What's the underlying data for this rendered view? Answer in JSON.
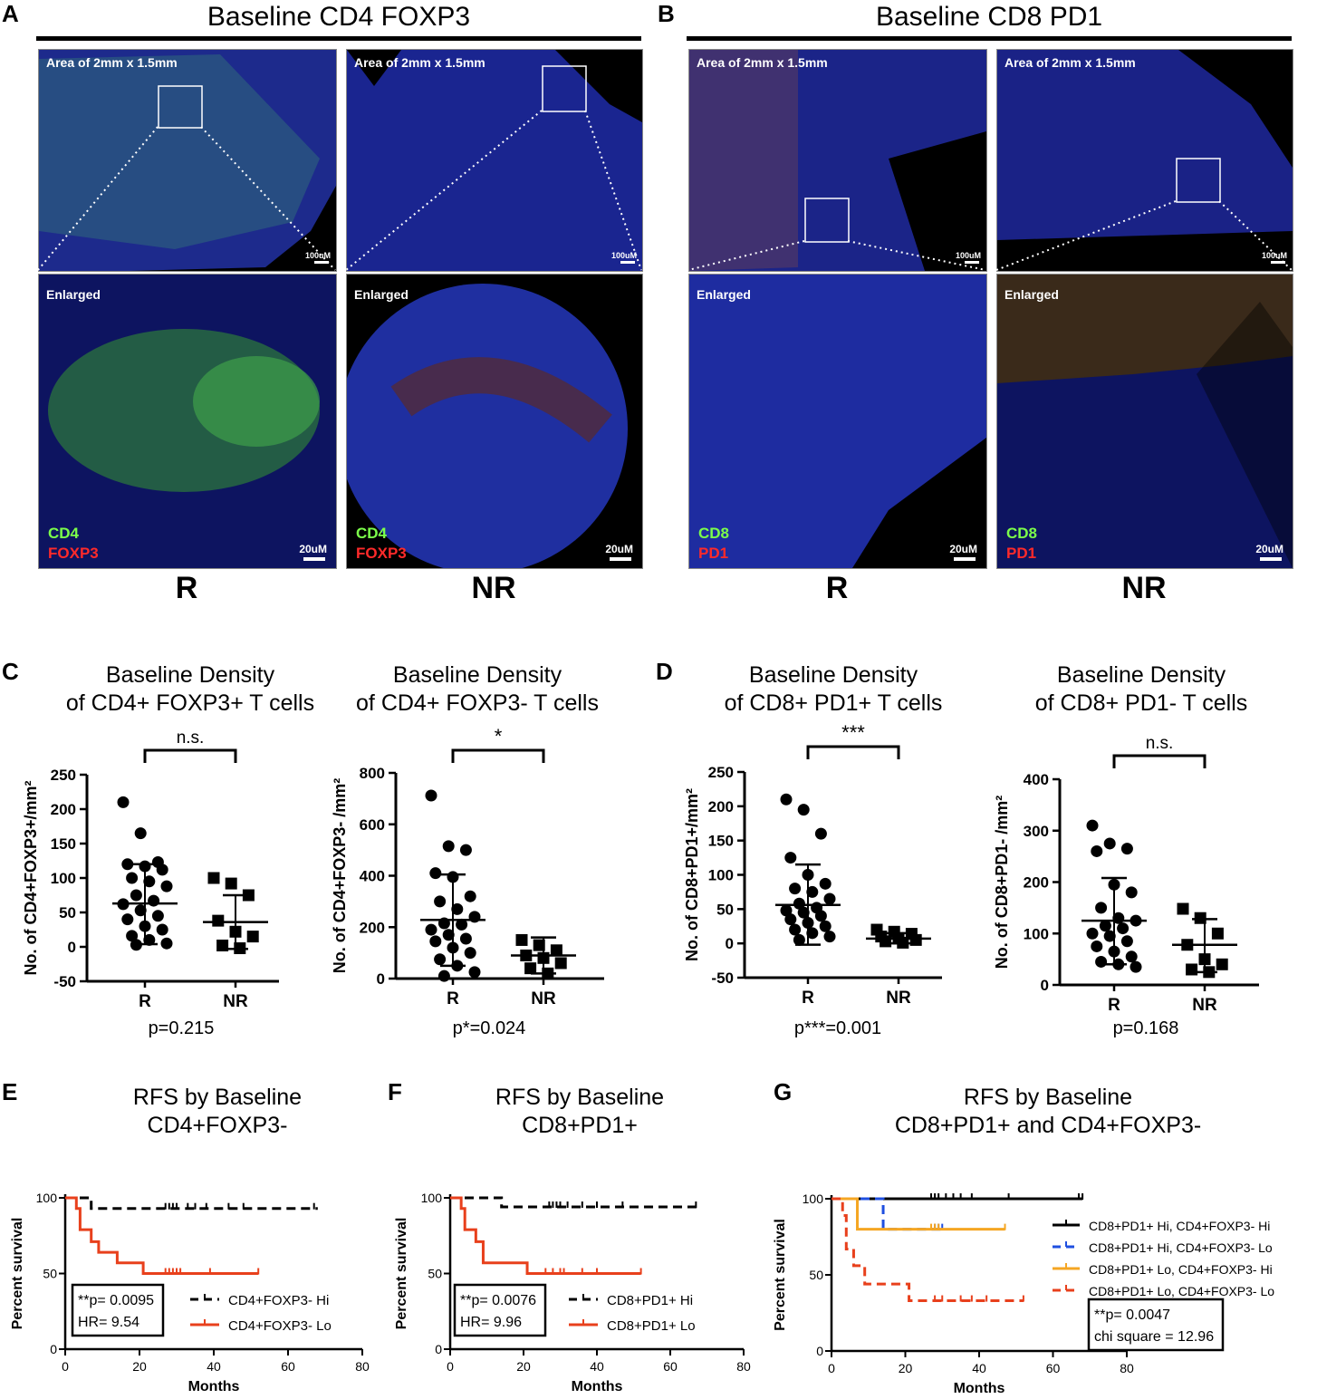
{
  "panels": {
    "A": {
      "letter": "A",
      "title": "Baseline CD4 FOXP3",
      "area_label": "Area of 2mm x 1.5mm",
      "enlarged_label": "Enlarged",
      "marker1": "CD4",
      "marker2": "FOXP3",
      "small_scale": "100uM",
      "large_scale": "20uM",
      "group_left": "R",
      "group_right": "NR"
    },
    "B": {
      "letter": "B",
      "title": "Baseline CD8 PD1",
      "area_label": "Area of 2mm x 1.5mm",
      "enlarged_label": "Enlarged",
      "marker1": "CD8",
      "marker2": "PD1",
      "small_scale": "100uM",
      "large_scale": "20uM",
      "group_left": "R",
      "group_right": "NR"
    },
    "C": {
      "letter": "C"
    },
    "D": {
      "letter": "D"
    },
    "E": {
      "letter": "E"
    },
    "F": {
      "letter": "F"
    },
    "G": {
      "letter": "G"
    }
  },
  "colors": {
    "hi_black": "#000000",
    "lo_red": "#e8401c",
    "blue": "#1f4fe0",
    "orange": "#f5a623",
    "green_marker": "#7cff4a",
    "red_marker": "#ff2a2a"
  },
  "chart_data": [
    {
      "id": "C1",
      "type": "scatter",
      "title_line1": "Baseline Density",
      "title_line2": "of CD4+ FOXP3+ T cells",
      "ylabel": "No. of CD4+FOXP3+/mm²",
      "ylim": [
        -50,
        250
      ],
      "yticks": [
        -50,
        0,
        50,
        100,
        150,
        200,
        250
      ],
      "categories": [
        "R",
        "NR"
      ],
      "significance": "n.s.",
      "pvalue": "p=0.215",
      "series": [
        {
          "group": "R",
          "marker": "circle",
          "mean": 63,
          "sd_low": 4,
          "sd_high": 120,
          "values": [
            210,
            165,
            123,
            120,
            117,
            112,
            100,
            95,
            88,
            75,
            67,
            62,
            53,
            45,
            40,
            30,
            25,
            16,
            10,
            5,
            3
          ]
        },
        {
          "group": "NR",
          "marker": "square",
          "mean": 36,
          "sd_low": -3,
          "sd_high": 75,
          "values": [
            100,
            92,
            75,
            38,
            22,
            15,
            2,
            -2
          ]
        }
      ]
    },
    {
      "id": "C2",
      "type": "scatter",
      "title_line1": "Baseline Density",
      "title_line2": "of CD4+ FOXP3- T cells",
      "ylabel": "No. of CD4+FOXP3- /mm²",
      "ylim": [
        0,
        800
      ],
      "yticks": [
        0,
        200,
        400,
        600,
        800
      ],
      "categories": [
        "R",
        "NR"
      ],
      "significance": "*",
      "pvalue": "p*=0.024",
      "series": [
        {
          "group": "R",
          "marker": "circle",
          "mean": 228,
          "sd_low": 50,
          "sd_high": 405,
          "values": [
            712,
            515,
            500,
            410,
            395,
            320,
            300,
            270,
            240,
            215,
            210,
            190,
            170,
            155,
            145,
            120,
            100,
            75,
            50,
            25,
            10
          ]
        },
        {
          "group": "NR",
          "marker": "square",
          "mean": 90,
          "sd_low": 20,
          "sd_high": 160,
          "values": [
            150,
            130,
            110,
            90,
            80,
            60,
            40,
            20
          ]
        }
      ]
    },
    {
      "id": "D1",
      "type": "scatter",
      "title_line1": "Baseline Density",
      "title_line2": "of CD8+ PD1+ T cells",
      "ylabel": "No. of CD8+PD1+/mm²",
      "ylim": [
        -50,
        250
      ],
      "yticks": [
        -50,
        0,
        50,
        100,
        150,
        200,
        250
      ],
      "categories": [
        "R",
        "NR"
      ],
      "significance": "***",
      "pvalue": "p***=0.001",
      "series": [
        {
          "group": "R",
          "marker": "circle",
          "mean": 56,
          "sd_low": -2,
          "sd_high": 115,
          "values": [
            210,
            195,
            160,
            125,
            100,
            87,
            80,
            75,
            65,
            58,
            52,
            48,
            45,
            40,
            35,
            30,
            25,
            20,
            15,
            10,
            5
          ]
        },
        {
          "group": "NR",
          "marker": "square",
          "mean": 7,
          "sd_low": 0,
          "sd_high": 15,
          "values": [
            20,
            17,
            14,
            10,
            7,
            5,
            3,
            1
          ]
        }
      ]
    },
    {
      "id": "D2",
      "type": "scatter",
      "title_line1": "Baseline Density",
      "title_line2": "of CD8+ PD1- T cells",
      "ylabel": "No. of CD8+PD1- /mm²",
      "ylim": [
        0,
        400
      ],
      "yticks": [
        0,
        100,
        200,
        300,
        400
      ],
      "categories": [
        "R",
        "NR"
      ],
      "significance": "n.s.",
      "pvalue": "p=0.168",
      "series": [
        {
          "group": "R",
          "marker": "circle",
          "mean": 125,
          "sd_low": 40,
          "sd_high": 208,
          "values": [
            310,
            275,
            265,
            260,
            195,
            180,
            150,
            130,
            125,
            115,
            110,
            100,
            95,
            85,
            75,
            65,
            55,
            45,
            40,
            35
          ]
        },
        {
          "group": "NR",
          "marker": "square",
          "mean": 78,
          "sd_low": 25,
          "sd_high": 128,
          "values": [
            148,
            130,
            100,
            78,
            50,
            40,
            30,
            25
          ]
        }
      ]
    },
    {
      "id": "E",
      "type": "line",
      "title_line1": "RFS by Baseline",
      "title_line2": "CD4+FOXP3-",
      "xlabel": "Months",
      "ylabel": "Percent survival",
      "xlim": [
        0,
        80
      ],
      "xticks": [
        0,
        20,
        40,
        60,
        80
      ],
      "ylim": [
        0,
        100
      ],
      "yticks": [
        0,
        50,
        100
      ],
      "stats_line1": "**p= 0.0095",
      "stats_line2": "HR= 9.54",
      "series": [
        {
          "name": "CD4+FOXP3- Hi",
          "style": "dashed",
          "color": "#000000",
          "steps": [
            [
              0,
              100
            ],
            [
              7,
              100
            ],
            [
              7,
              93
            ],
            [
              68,
              93
            ]
          ],
          "censors": [
            [
              27,
              93
            ],
            [
              28,
              93
            ],
            [
              29,
              93
            ],
            [
              30,
              93
            ],
            [
              33,
              93
            ],
            [
              35,
              93
            ],
            [
              38,
              93
            ],
            [
              44,
              93
            ],
            [
              48,
              93
            ],
            [
              67,
              93
            ]
          ]
        },
        {
          "name": "CD4+FOXP3- Lo",
          "style": "solid",
          "color": "#e8401c",
          "steps": [
            [
              0,
              100
            ],
            [
              3,
              100
            ],
            [
              3,
              93
            ],
            [
              4,
              93
            ],
            [
              4,
              79
            ],
            [
              7,
              79
            ],
            [
              7,
              71
            ],
            [
              9,
              71
            ],
            [
              9,
              64
            ],
            [
              14,
              64
            ],
            [
              14,
              57
            ],
            [
              21,
              57
            ],
            [
              21,
              50
            ],
            [
              52,
              50
            ]
          ],
          "censors": [
            [
              27,
              50
            ],
            [
              28,
              50
            ],
            [
              29,
              50
            ],
            [
              30,
              50
            ],
            [
              31,
              50
            ],
            [
              39,
              50
            ],
            [
              52,
              50
            ]
          ]
        }
      ]
    },
    {
      "id": "F",
      "type": "line",
      "title_line1": "RFS by Baseline",
      "title_line2": "CD8+PD1+",
      "xlabel": "Months",
      "ylabel": "Percent survival",
      "xlim": [
        0,
        80
      ],
      "xticks": [
        0,
        20,
        40,
        60,
        80
      ],
      "ylim": [
        0,
        100
      ],
      "yticks": [
        0,
        50,
        100
      ],
      "stats_line1": "**p= 0.0076",
      "stats_line2": "HR= 9.96",
      "series": [
        {
          "name": "CD8+PD1+ Hi",
          "style": "dashed",
          "color": "#000000",
          "steps": [
            [
              0,
              100
            ],
            [
              14,
              100
            ],
            [
              14,
              94
            ],
            [
              68,
              94
            ]
          ],
          "censors": [
            [
              27,
              94
            ],
            [
              28,
              94
            ],
            [
              29,
              94
            ],
            [
              30,
              94
            ],
            [
              32,
              94
            ],
            [
              36,
              94
            ],
            [
              40,
              94
            ],
            [
              47,
              94
            ],
            [
              67,
              94
            ]
          ]
        },
        {
          "name": "CD8+PD1+ Lo",
          "style": "solid",
          "color": "#e8401c",
          "steps": [
            [
              0,
              100
            ],
            [
              3,
              100
            ],
            [
              3,
              93
            ],
            [
              4,
              93
            ],
            [
              4,
              79
            ],
            [
              7,
              79
            ],
            [
              7,
              71
            ],
            [
              9,
              71
            ],
            [
              9,
              57
            ],
            [
              21,
              57
            ],
            [
              21,
              50
            ],
            [
              52,
              50
            ]
          ],
          "censors": [
            [
              26,
              50
            ],
            [
              28,
              50
            ],
            [
              30,
              50
            ],
            [
              31,
              50
            ],
            [
              36,
              50
            ],
            [
              40,
              50
            ],
            [
              52,
              50
            ]
          ]
        }
      ]
    },
    {
      "id": "G",
      "type": "line",
      "title_line1": "RFS by Baseline",
      "title_line2": "CD8+PD1+ and CD4+FOXP3-",
      "xlabel": "Months",
      "ylabel": "Percent survival",
      "xlim": [
        0,
        80
      ],
      "xticks": [
        0,
        20,
        40,
        60,
        80
      ],
      "ylim": [
        0,
        100
      ],
      "yticks": [
        0,
        50,
        100
      ],
      "stats_line1": "**p= 0.0047",
      "stats_line2": "chi square = 12.96",
      "series": [
        {
          "name": "CD8+PD1+ Hi, CD4+FOXP3- Hi",
          "style": "solid",
          "color": "#000000",
          "steps": [
            [
              0,
              100
            ],
            [
              68,
              100
            ]
          ],
          "censors": [
            [
              27,
              100
            ],
            [
              28,
              100
            ],
            [
              29,
              100
            ],
            [
              31,
              100
            ],
            [
              33,
              100
            ],
            [
              35,
              100
            ],
            [
              38,
              100
            ],
            [
              48,
              100
            ],
            [
              67,
              100
            ],
            [
              68,
              100
            ]
          ]
        },
        {
          "name": "CD8+PD1+ Hi, CD4+FOXP3- Lo",
          "style": "dashed",
          "color": "#1f4fe0",
          "steps": [
            [
              0,
              100
            ],
            [
              14,
              100
            ],
            [
              14,
              80
            ],
            [
              31,
              80
            ]
          ],
          "censors": [
            [
              28,
              80
            ],
            [
              29,
              80
            ],
            [
              30,
              80
            ]
          ]
        },
        {
          "name": "CD8+PD1+ Lo, CD4+FOXP3- Hi",
          "style": "solid",
          "color": "#f5a623",
          "steps": [
            [
              0,
              100
            ],
            [
              7,
              100
            ],
            [
              7,
              80
            ],
            [
              47,
              80
            ]
          ],
          "censors": [
            [
              27,
              80
            ],
            [
              28,
              80
            ],
            [
              29,
              80
            ],
            [
              47,
              80
            ]
          ]
        },
        {
          "name": "CD8+PD1+ Lo, CD4+FOXP3- Lo",
          "style": "dashed",
          "color": "#e8401c",
          "steps": [
            [
              0,
              100
            ],
            [
              3,
              100
            ],
            [
              3,
              89
            ],
            [
              4,
              89
            ],
            [
              4,
              67
            ],
            [
              6,
              67
            ],
            [
              6,
              56
            ],
            [
              9,
              56
            ],
            [
              9,
              44
            ],
            [
              21,
              44
            ],
            [
              21,
              33
            ],
            [
              52,
              33
            ]
          ],
          "censors": [
            [
              28,
              33
            ],
            [
              30,
              33
            ],
            [
              35,
              33
            ],
            [
              38,
              33
            ],
            [
              42,
              33
            ],
            [
              52,
              33
            ]
          ]
        }
      ]
    }
  ]
}
